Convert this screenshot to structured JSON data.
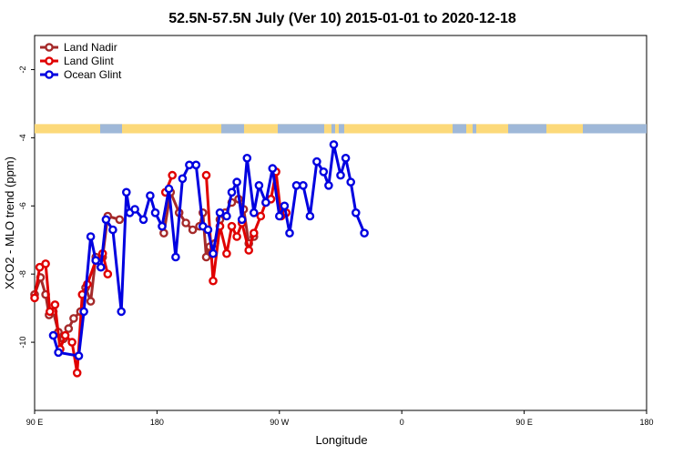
{
  "chart_data": {
    "type": "line",
    "title": "52.5N-57.5N July (Ver 10)   2015-01-01 to 2020-12-18",
    "xlabel": "Longitude",
    "ylabel": "XCO2 - MLO trend (ppm)",
    "xlim": [
      90,
      450
    ],
    "ylim": [
      -12,
      -1
    ],
    "x_ticks": [
      {
        "value": 90,
        "label": "90 E"
      },
      {
        "value": 180,
        "label": "180"
      },
      {
        "value": 270,
        "label": "90 W"
      },
      {
        "value": 360,
        "label": "0"
      },
      {
        "value": 450,
        "label": "90 E"
      },
      {
        "value": 540,
        "label": "180"
      }
    ],
    "y_ticks": [
      {
        "value": -2,
        "label": "-2"
      },
      {
        "value": -4,
        "label": "-4"
      },
      {
        "value": -6,
        "label": "-6"
      },
      {
        "value": -8,
        "label": "-8"
      },
      {
        "value": -10,
        "label": "-10"
      }
    ],
    "legend_position": "top-left",
    "grid": false,
    "land_band": {
      "y_range": [
        -3.87,
        -3.6
      ],
      "land_color": "#fcd97a",
      "ocean_color": "#9fb8d8"
    },
    "series": [
      {
        "name": "Land Nadir",
        "color": "#a52a2a",
        "segments": [
          [
            [
              90,
              -8.6
            ],
            [
              93.5,
              -8.1
            ],
            [
              96.5,
              -8.6
            ],
            [
              98.5,
              -9.2
            ],
            [
              101,
              -9.1
            ],
            [
              104,
              -9.7
            ],
            [
              107,
              -9.9
            ],
            [
              110,
              -9.6
            ],
            [
              113,
              -9.3
            ],
            [
              117,
              -9.1
            ],
            [
              120,
              -8.4
            ],
            [
              123,
              -8.8
            ],
            [
              126,
              -7.5
            ],
            [
              130,
              -7.5
            ],
            [
              133,
              -6.3
            ],
            [
              140,
              -6.4
            ]
          ],
          [
            [
              166,
              -6.8
            ],
            [
              170,
              -5.6
            ],
            [
              175,
              -6.2
            ],
            [
              179,
              -6.5
            ],
            [
              183,
              -6.7
            ],
            [
              187,
              -6.6
            ],
            [
              189,
              -6.2
            ],
            [
              191,
              -7.5
            ],
            [
              193,
              -7.2
            ],
            [
              196,
              -7.1
            ],
            [
              199,
              -6.4
            ],
            [
              202,
              -6.2
            ],
            [
              206,
              -5.9
            ],
            [
              210,
              -5.8
            ],
            [
              213,
              -6.1
            ],
            [
              216,
              -7.1
            ],
            [
              219,
              -6.9
            ]
          ]
        ]
      },
      {
        "name": "Land Glint",
        "color": "#e00000",
        "segments": [
          [
            [
              90,
              -8.7
            ],
            [
              93,
              -7.8
            ],
            [
              96.5,
              -7.7
            ],
            [
              99,
              -9.1
            ],
            [
              102,
              -8.9
            ],
            [
              105,
              -10.2
            ],
            [
              108,
              -9.8
            ],
            [
              112,
              -10.0
            ],
            [
              115,
              -10.9
            ],
            [
              118,
              -8.6
            ],
            [
              121,
              -8.3
            ],
            [
              126,
              -7.6
            ],
            [
              130,
              -7.4
            ],
            [
              133,
              -8.0
            ]
          ],
          [
            [
              167,
              -5.6
            ],
            [
              171,
              -5.1
            ]
          ],
          [
            [
              191,
              -5.1
            ],
            [
              195,
              -8.2
            ],
            [
              199,
              -6.6
            ],
            [
              203,
              -7.4
            ],
            [
              206,
              -6.6
            ],
            [
              209,
              -6.9
            ],
            [
              212,
              -6.5
            ],
            [
              216,
              -7.3
            ],
            [
              219,
              -6.8
            ],
            [
              223,
              -6.3
            ],
            [
              226,
              -5.9
            ],
            [
              229,
              -5.8
            ],
            [
              232,
              -5.0
            ],
            [
              235,
              -6.3
            ],
            [
              238,
              -6.2
            ]
          ]
        ]
      },
      {
        "name": "Ocean Glint",
        "color": "#0000e0",
        "segments": [
          [
            [
              101,
              -9.8
            ],
            [
              104,
              -10.3
            ],
            [
              116,
              -10.4
            ],
            [
              119,
              -9.1
            ],
            [
              123,
              -6.9
            ],
            [
              126,
              -7.6
            ],
            [
              129,
              -7.8
            ],
            [
              132,
              -6.4
            ],
            [
              136,
              -6.7
            ],
            [
              141,
              -9.1
            ],
            [
              144,
              -5.6
            ],
            [
              146,
              -6.2
            ],
            [
              149,
              -6.1
            ],
            [
              154,
              -6.4
            ],
            [
              158,
              -5.7
            ],
            [
              161,
              -6.2
            ],
            [
              165,
              -6.6
            ],
            [
              169,
              -5.5
            ],
            [
              173,
              -7.5
            ],
            [
              177,
              -5.2
            ],
            [
              181,
              -4.8
            ],
            [
              185,
              -4.8
            ],
            [
              189,
              -6.6
            ],
            [
              192,
              -6.7
            ],
            [
              195,
              -7.4
            ],
            [
              199,
              -6.2
            ],
            [
              203,
              -6.3
            ],
            [
              206,
              -5.6
            ],
            [
              209,
              -5.3
            ],
            [
              212,
              -6.4
            ],
            [
              215,
              -4.6
            ],
            [
              219,
              -6.2
            ],
            [
              222,
              -5.4
            ],
            [
              226,
              -5.9
            ],
            [
              230,
              -4.9
            ],
            [
              234,
              -6.3
            ],
            [
              237,
              -6.0
            ],
            [
              240,
              -6.8
            ],
            [
              244,
              -5.4
            ],
            [
              248,
              -5.4
            ],
            [
              252,
              -6.3
            ],
            [
              256,
              -4.7
            ],
            [
              260,
              -5.0
            ],
            [
              263,
              -5.4
            ],
            [
              266,
              -4.2
            ],
            [
              270,
              -5.1
            ],
            [
              273,
              -4.6
            ],
            [
              276,
              -5.3
            ],
            [
              279,
              -6.2
            ],
            [
              284,
              -6.8
            ]
          ]
        ]
      }
    ]
  }
}
